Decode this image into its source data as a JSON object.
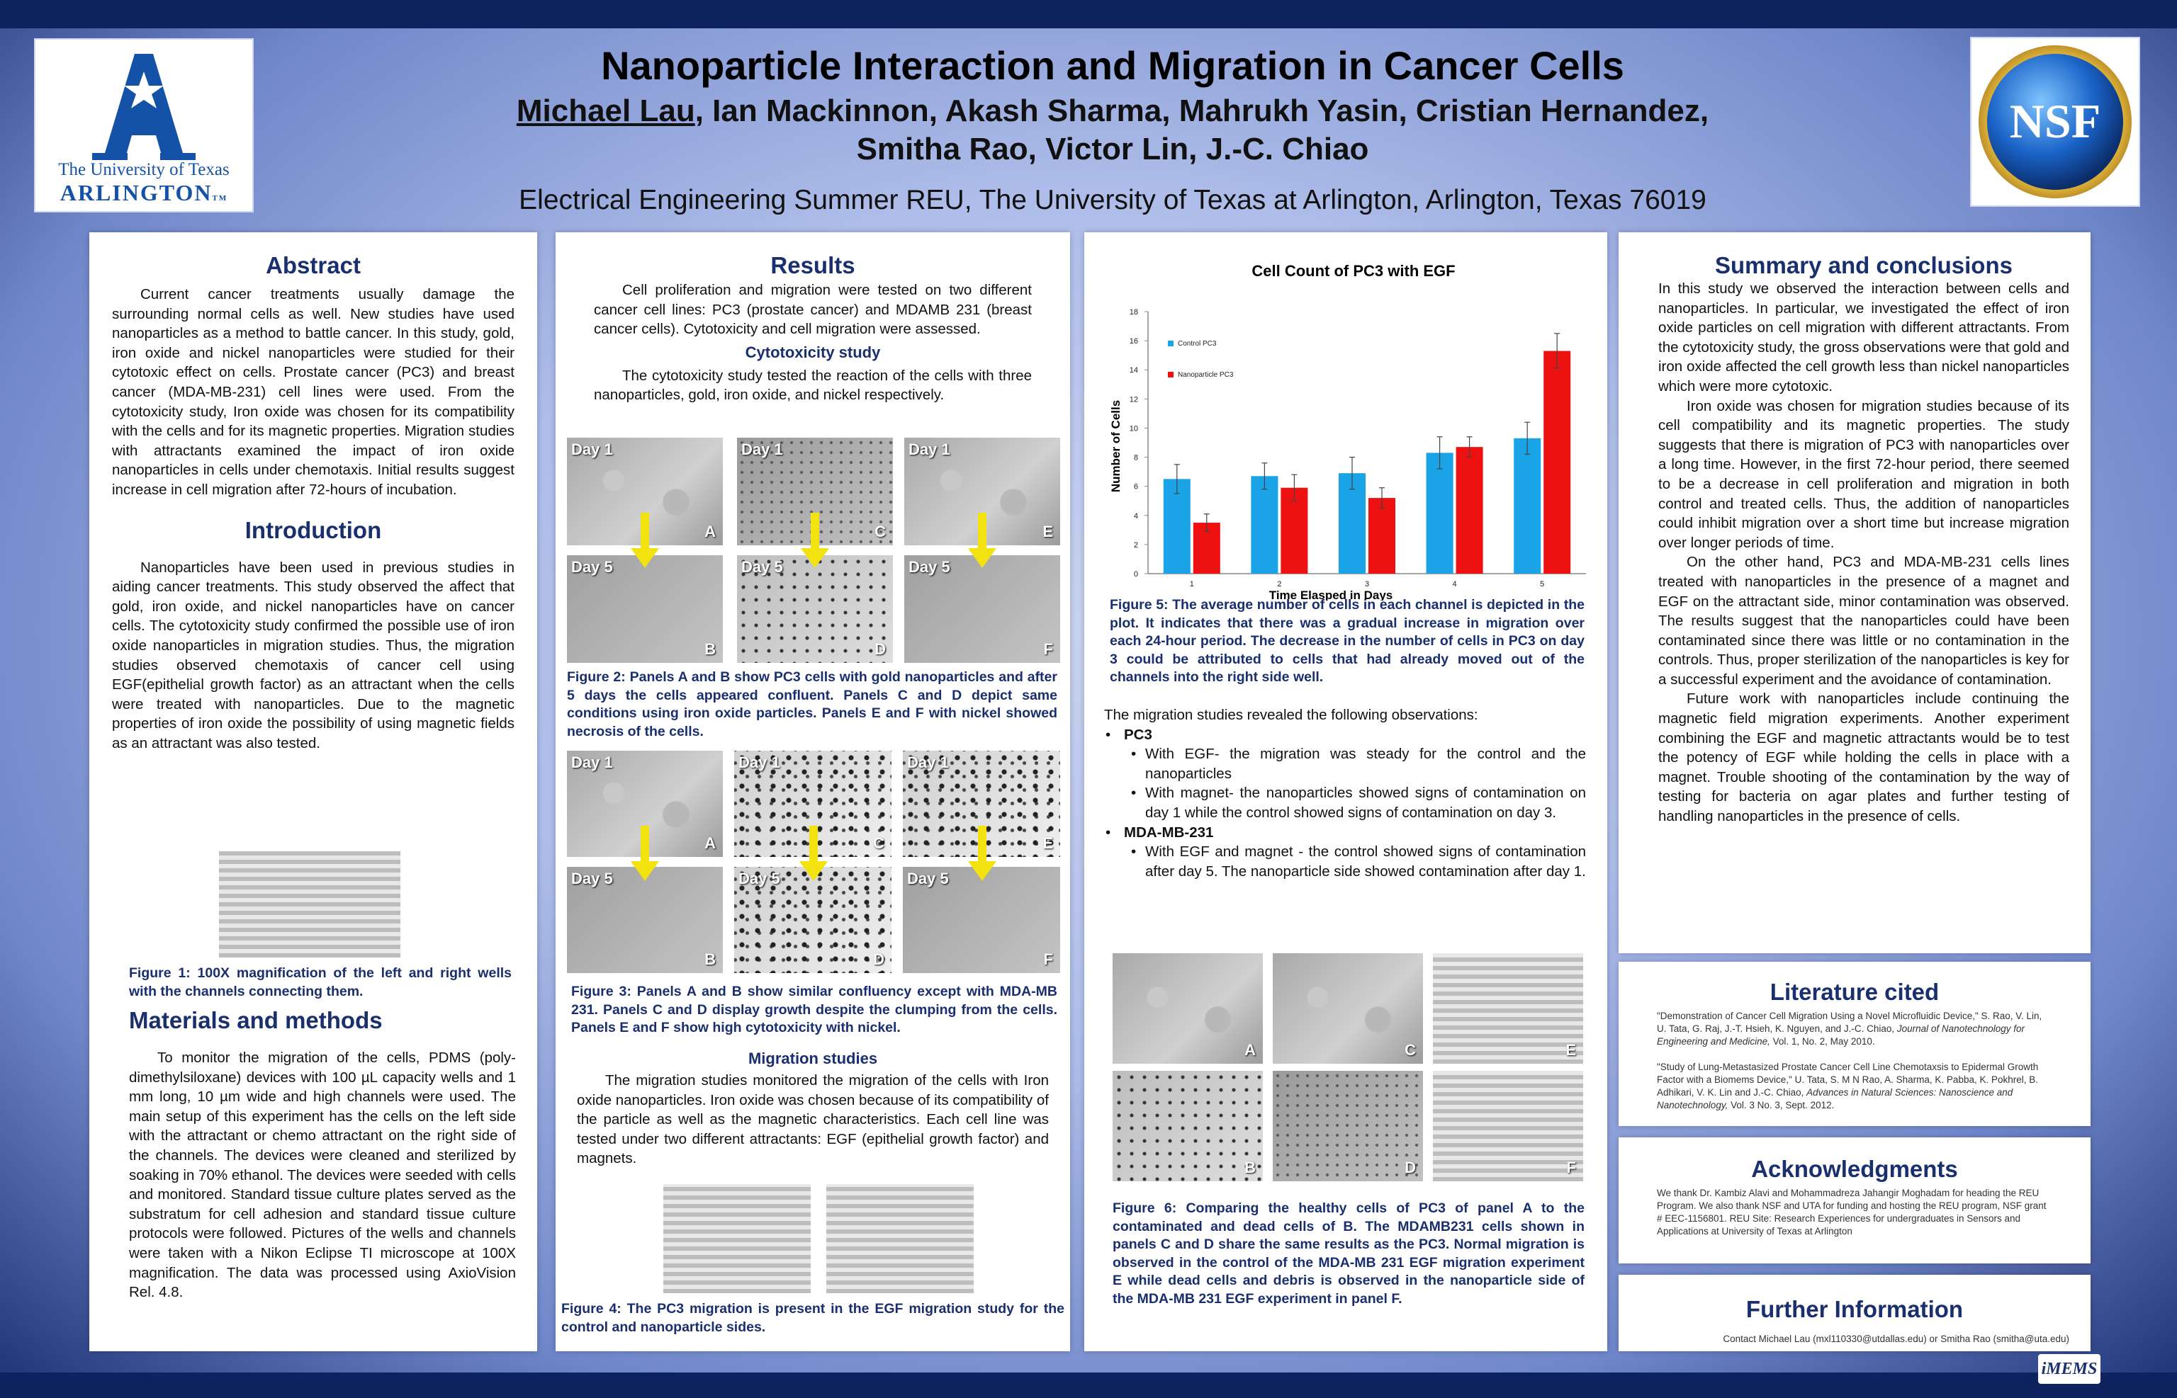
{
  "header": {
    "title": "Nanoparticle Interaction and Migration in Cancer Cells",
    "presenter": "Michael Lau",
    "authors_rest_line1": ", Ian Mackinnon, Akash Sharma, Mahrukh Yasin, Cristian Hernandez,",
    "authors_line2": "Smitha Rao, Victor Lin, J.-C. Chiao",
    "affiliation": "Electrical Engineering Summer REU, The University of Texas at Arlington, Arlington, Texas 76019"
  },
  "logos": {
    "uta_line1": "The University of Texas",
    "uta_line2": "ARLINGTON",
    "uta_tm": "TM",
    "nsf": "NSF",
    "imems": "iMEMS"
  },
  "abstract": {
    "heading": "Abstract",
    "text": "Current cancer treatments usually damage the surrounding normal cells as well. New studies have used nanoparticles as a method to battle cancer. In this study, gold, iron oxide and nickel nanoparticles were studied for their cytotoxic effect on cells. Prostate cancer (PC3) and breast cancer (MDA-MB-231) cell lines were used. From the cytotoxicity study, Iron oxide was chosen for its compatibility with the cells and for its magnetic properties. Migration studies with attractants examined the impact of iron oxide nanoparticles in cells under chemotaxis. Initial results suggest increase in cell migration after 72-hours of incubation."
  },
  "introduction": {
    "heading": "Introduction",
    "text": "Nanoparticles have been used in previous studies in aiding cancer treatments. This study observed the affect that gold, iron oxide, and nickel nanoparticles have on cancer cells. The cytotoxicity study confirmed the possible use of iron oxide nanoparticles in migration studies. Thus, the migration studies observed chemotaxis of cancer cell using EGF(epithelial growth factor) as an attractant when the cells were treated with nanoparticles. Due to the magnetic properties of iron oxide the possibility of using magnetic fields as an attractant was also tested.",
    "fig1_caption": "Figure 1: 100X magnification of the left and right wells with the channels connecting them."
  },
  "methods": {
    "heading": "Materials and methods",
    "text": "To monitor the migration of the cells, PDMS (poly-dimethylsiloxane) devices with 100 µL capacity wells and 1 mm long, 10 µm wide and high channels were used. The main setup of this experiment has the cells on the left side with the attractant or chemo attractant on the right side of the channels. The devices were cleaned and sterilized by soaking in 70% ethanol. The devices were seeded with cells and monitored. Standard tissue culture plates served as the substratum for cell adhesion and standard tissue culture protocols were followed. Pictures of the wells and channels were taken with a Nikon Eclipse TI microscope at 100X magnification. The data was processed using AxioVision Rel. 4.8."
  },
  "results": {
    "heading": "Results",
    "intro": "Cell proliferation and migration were tested on two different cancer cell lines: PC3 (prostate cancer) and MDAMB 231 (breast cancer cells). Cytotoxicity and cell migration were assessed.",
    "cyto_heading": "Cytotoxicity study",
    "cyto_text": "The cytotoxicity study tested the reaction of the cells with three nanoparticles, gold, iron oxide, and nickel respectively.",
    "fig2_caption": "Figure 2: Panels A and B show PC3 cells with gold nanoparticles and after 5 days the cells appeared confluent. Panels C and D depict same conditions using iron oxide particles. Panels E and F with nickel showed necrosis of the cells.",
    "fig3_caption": "Figure 3: Panels A and B show similar confluency except with MDA-MB 231. Panels C and D display growth despite the clumping from the cells. Panels E and F show high cytotoxicity with nickel.",
    "migration_heading": "Migration studies",
    "migration_text": "The migration studies monitored the migration of the cells with Iron oxide nanoparticles. Iron oxide was chosen because of its compatibility of the particle as well as the magnetic characteristics. Each cell line was tested under two different attractants: EGF (epithelial growth factor) and magnets.",
    "fig4_caption": "Figure 4: The PC3 migration is present in the EGF migration study for the control and nanoparticle sides.",
    "day1": "Day 1",
    "day5": "Day 5",
    "letters": [
      "A",
      "B",
      "C",
      "D",
      "E",
      "F"
    ]
  },
  "chart_data": {
    "type": "bar",
    "title": "Cell Count of PC3 with EGF",
    "xlabel": "Time Elasped in Days",
    "ylabel": "Number of Cells",
    "categories": [
      "1",
      "2",
      "3",
      "4",
      "5"
    ],
    "ylim": [
      0,
      18
    ],
    "yticks": [
      "0",
      "2",
      "4",
      "6",
      "8",
      "10",
      "12",
      "14",
      "16",
      "18"
    ],
    "legend_position": "top-left",
    "series": [
      {
        "name": "Control PC3",
        "color": "#1aa3e6",
        "values": [
          6.5,
          6.7,
          6.9,
          8.3,
          9.3
        ],
        "errors": [
          1.0,
          0.9,
          1.1,
          1.1,
          1.1
        ]
      },
      {
        "name": "Nanoparticle PC3",
        "color": "#ee1111",
        "values": [
          3.5,
          5.9,
          5.2,
          8.7,
          15.3
        ],
        "errors": [
          0.6,
          0.9,
          0.7,
          0.7,
          1.2
        ]
      }
    ]
  },
  "right_middle": {
    "fig5_caption": "Figure 5: The average number of cells in each channel is depicted in the plot. It indicates that there was a gradual increase in migration over each 24-hour period. The decrease in the number of cells in PC3 on day 3 could be attributed to cells that had already moved out of the channels into the right side well.",
    "obs_intro": "The migration studies revealed the following observations:",
    "pc3": "PC3",
    "pc3_items": [
      "With EGF- the migration was steady for the control and the nanoparticles",
      "With magnet- the nanoparticles showed signs of contamination on day 1 while the control showed signs of contamination on day 3."
    ],
    "mda": "MDA-MB-231",
    "mda_items": [
      "With EGF and magnet - the control showed signs of contamination after day 5. The nanoparticle side showed contamination after day 1."
    ],
    "fig6_caption": "Figure 6: Comparing the healthy cells of PC3 of panel A to the contaminated and dead cells of B. The MDAMB231 cells shown in panels C and D share the same results as the PC3. Normal migration is observed in the control of the MDA-MB 231 EGF migration experiment E while dead cells and debris is observed in the nanoparticle side of the MDA-MB 231 EGF experiment in panel F."
  },
  "summary": {
    "heading": "Summary and conclusions",
    "p1": "In this study we observed the interaction between cells and nanoparticles. In particular, we investigated the effect of iron oxide particles on cell migration with different attractants. From the cytotoxicity study, the gross observations were that gold and iron oxide affected the cell growth less than nickel nanoparticles which were more cytotoxic.",
    "p2": "Iron oxide was chosen for migration studies because of its cell compatibility and its magnetic properties. The study suggests that there is migration of PC3 with nanoparticles over a long time. However, in the first 72-hour period, there seemed to be a decrease in cell proliferation and migration in both control and treated cells. Thus, the addition of nanoparticles could inhibit migration over a short time but increase migration over longer periods of time.",
    "p3": "On the other hand, PC3 and MDA-MB-231 cells lines treated with nanoparticles in the presence of a magnet and EGF on the attractant side, minor contamination was observed. The results suggest that the nanoparticles could have been contaminated since there was little or no contamination in the controls. Thus, proper sterilization of the nanoparticles is key for a successful experiment and the avoidance of contamination.",
    "p4": "Future work with nanoparticles include continuing the magnetic field migration experiments. Another experiment combining the EGF and magnetic attractants would be to test the potency of EGF while holding the cells in place with a magnet. Trouble shooting of the contamination by the way of testing for bacteria on agar plates and further testing of handling nanoparticles in the presence of cells."
  },
  "literature": {
    "heading": "Literature cited",
    "ref1_main": "\"Demonstration of Cancer Cell Migration Using a Novel Microfluidic Device,\" S. Rao, V. Lin, U. Tata, G. Raj, J.-T. Hsieh, K. Nguyen, and J.-C. Chiao, ",
    "ref1_journal": "Journal of Nanotechnology for Engineering and Medicine,",
    "ref1_tail": " Vol. 1, No. 2, May 2010.",
    "ref2_main": "\"Study of Lung-Metastasized Prostate Cancer Cell Line Chemotaxsis to Epidermal Growth Factor with a Biomems Device,\" U. Tata, S. M N Rao, A. Sharma, K. Pabba, K. Pokhrel, B. Adhikari, V. K. Lin and J.-C. Chiao, ",
    "ref2_journal": "Advances in Natural Sciences: Nanoscience and Nanotechnology,",
    "ref2_tail": " Vol. 3 No. 3, Sept. 2012."
  },
  "acknowledgments": {
    "heading": "Acknowledgments",
    "text": "We thank Dr. Kambiz Alavi and Mohammadreza Jahangir Moghadam for heading the REU Program. We also thank NSF and UTA for funding and hosting the REU program, NSF grant # EEC-1156801. REU Site: Research Experiences for undergraduates in Sensors and Applications at University of Texas at Arlington"
  },
  "further": {
    "heading": "Further Information",
    "contact": "Contact Michael Lau (mxl110330@utdallas.edu) or Smitha Rao (smitha@uta.edu)"
  }
}
